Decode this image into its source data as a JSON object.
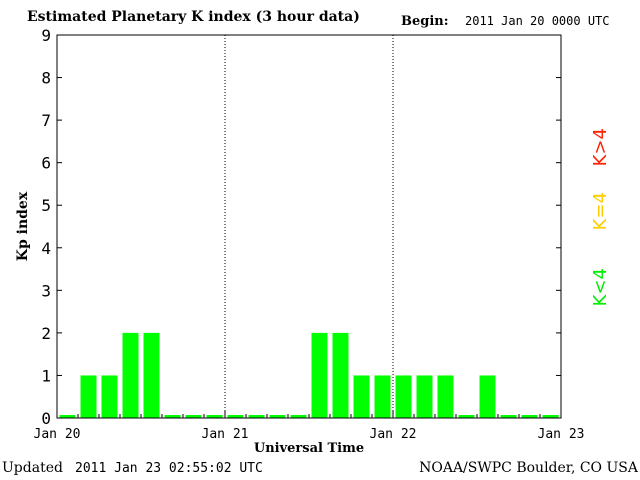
{
  "header": {
    "title": "Estimated Planetary K index (3 hour data)",
    "begin_label": "Begin:",
    "begin_value": "2011 Jan 20 0000 UTC"
  },
  "footer": {
    "updated_label": "Updated",
    "updated_value": "2011 Jan 23 02:55:02 UTC",
    "credit": "NOAA/SWPC Boulder, CO USA"
  },
  "legend": [
    {
      "label": "K>4",
      "color": "#ff2200"
    },
    {
      "label": "K=4",
      "color": "#ffcc00"
    },
    {
      "label": "K<4",
      "color": "#00ee00"
    }
  ],
  "chart_data": {
    "type": "bar",
    "title": "Estimated Planetary K index (3 hour data)",
    "xlabel": "Universal Time",
    "ylabel": "Kp index",
    "ylim": [
      0,
      9
    ],
    "yticks": [
      0,
      1,
      2,
      3,
      4,
      5,
      6,
      7,
      8,
      9
    ],
    "xticks": [
      "Jan 20",
      "Jan 21",
      "Jan 22",
      "Jan 23"
    ],
    "bar_color": "#00ff00",
    "interval_hours": 3,
    "values": [
      0,
      1,
      1,
      2,
      2,
      0,
      0,
      0,
      0,
      0,
      0,
      0,
      2,
      2,
      1,
      1,
      1,
      1,
      1,
      0,
      1,
      0,
      0,
      0
    ]
  }
}
